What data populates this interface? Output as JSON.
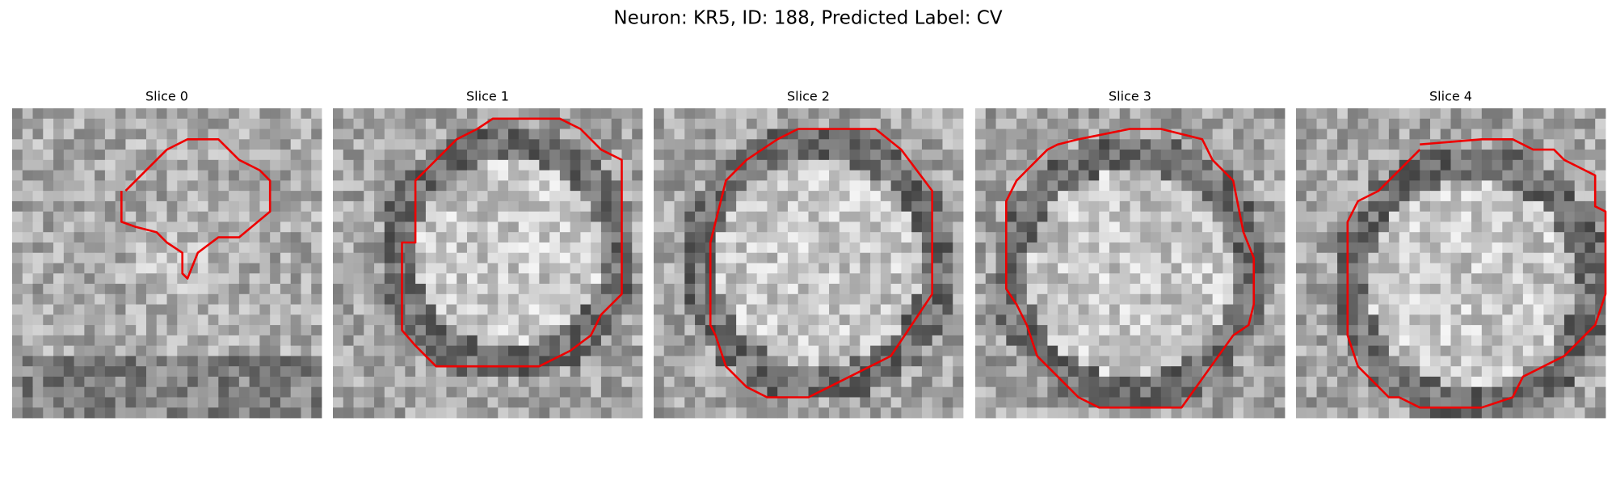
{
  "title": "Neuron: KR5, ID: 188, Predicted Label: CV",
  "panels": [
    {
      "title": "Slice 0"
    },
    {
      "title": "Slice 1"
    },
    {
      "title": "Slice 2"
    },
    {
      "title": "Slice 3"
    },
    {
      "title": "Slice 4"
    }
  ]
}
